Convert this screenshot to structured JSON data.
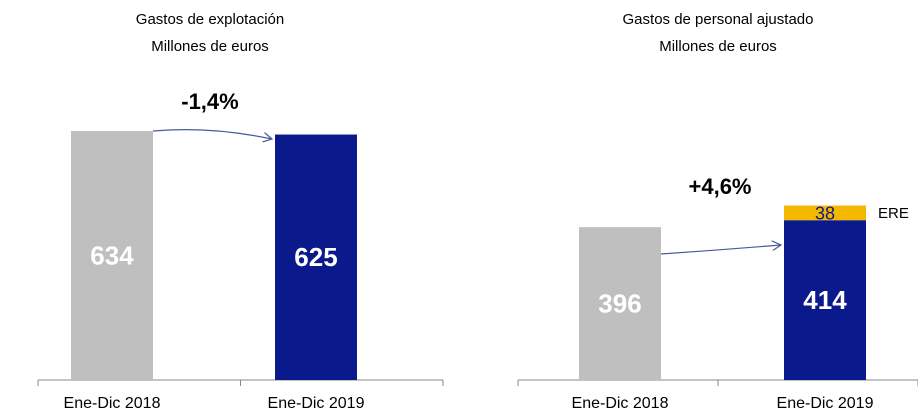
{
  "chart_data": [
    {
      "type": "bar",
      "title": "Gastos de explotación",
      "subtitle": "Millones de euros",
      "categories": [
        "Ene-Dic 2018",
        "Ene-Dic 2019"
      ],
      "values": [
        634,
        625
      ],
      "colors": [
        "#bfbfbf",
        "#0a1a8c"
      ],
      "annotation": "-1,4%"
    },
    {
      "type": "stacked_bar",
      "title": "Gastos de personal ajustado",
      "subtitle": "Millones de euros",
      "categories": [
        "Ene-Dic 2018",
        "Ene-Dic 2019"
      ],
      "series": [
        {
          "values": [
            396,
            414
          ],
          "colors": [
            "#bfbfbf",
            "#0a1a8c"
          ]
        },
        {
          "name": "ERE",
          "values": [
            null,
            38
          ],
          "color": "#f5b800"
        }
      ],
      "annotation": "+4,6%"
    }
  ]
}
